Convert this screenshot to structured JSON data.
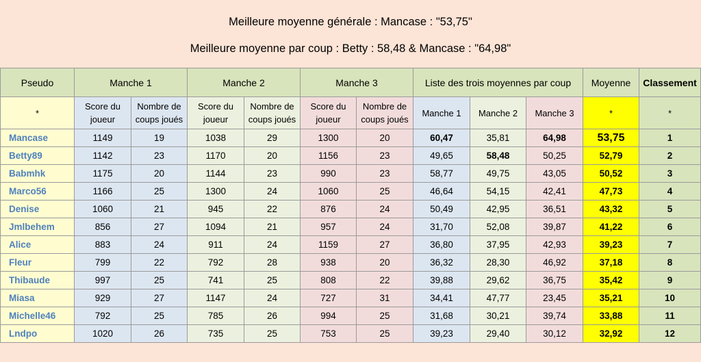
{
  "headline1": "Meilleure moyenne générale : Mancase : \"53,75\"",
  "headline2": "Meilleure moyenne par coup : Betty : 58,48 & Mancase : \"64,98\"",
  "header": {
    "pseudo": "Pseudo",
    "manche1": "Manche 1",
    "manche2": "Manche  2",
    "manche3": "Manche 3",
    "liste": "Liste des trois moyennes par coup",
    "moyenne": "Moyenne",
    "classement": "Classement"
  },
  "subheader": {
    "star": "*",
    "score_l1": "Score du",
    "score_l2": "joueur",
    "coups_l1": "Nombre de",
    "coups_l2": "coups joués",
    "lm1": "Manche 1",
    "lm2": "Manche 2",
    "lm3": "Manche 3"
  },
  "rows": [
    {
      "name": "Mancase",
      "s1": "1149",
      "c1": "19",
      "s2": "1038",
      "c2": "29",
      "s3": "1300",
      "c3": "20",
      "a1": "60,47",
      "a2": "35,81",
      "a3": "64,98",
      "avg": "53,75",
      "rank": "1"
    },
    {
      "name": "Betty89",
      "s1": "1142",
      "c1": "23",
      "s2": "1170",
      "c2": "20",
      "s3": "1156",
      "c3": "23",
      "a1": "49,65",
      "a2": "58,48",
      "a3": "50,25",
      "avg": "52,79",
      "rank": "2"
    },
    {
      "name": "Babmhk",
      "s1": "1175",
      "c1": "20",
      "s2": "1144",
      "c2": "23",
      "s3": "990",
      "c3": "23",
      "a1": "58,77",
      "a2": "49,75",
      "a3": "43,05",
      "avg": "50,52",
      "rank": "3"
    },
    {
      "name": "Marco56",
      "s1": "1166",
      "c1": "25",
      "s2": "1300",
      "c2": "24",
      "s3": "1060",
      "c3": "25",
      "a1": "46,64",
      "a2": "54,15",
      "a3": "42,41",
      "avg": "47,73",
      "rank": "4"
    },
    {
      "name": "Denise",
      "s1": "1060",
      "c1": "21",
      "s2": "945",
      "c2": "22",
      "s3": "876",
      "c3": "24",
      "a1": "50,49",
      "a2": "42,95",
      "a3": "36,51",
      "avg": "43,32",
      "rank": "5"
    },
    {
      "name": "Jmlbehem",
      "s1": "856",
      "c1": "27",
      "s2": "1094",
      "c2": "21",
      "s3": "957",
      "c3": "24",
      "a1": "31,70",
      "a2": "52,08",
      "a3": "39,87",
      "avg": "41,22",
      "rank": "6"
    },
    {
      "name": "Alice",
      "s1": "883",
      "c1": "24",
      "s2": "911",
      "c2": "24",
      "s3": "1159",
      "c3": "27",
      "a1": "36,80",
      "a2": "37,95",
      "a3": "42,93",
      "avg": "39,23",
      "rank": "7"
    },
    {
      "name": "Fleur",
      "s1": "799",
      "c1": "22",
      "s2": "792",
      "c2": "28",
      "s3": "938",
      "c3": "20",
      "a1": "36,32",
      "a2": "28,30",
      "a3": "46,92",
      "avg": "37,18",
      "rank": "8"
    },
    {
      "name": "Thibaude",
      "s1": "997",
      "c1": "25",
      "s2": "741",
      "c2": "25",
      "s3": "808",
      "c3": "22",
      "a1": "39,88",
      "a2": "29,62",
      "a3": "36,75",
      "avg": "35,42",
      "rank": "9"
    },
    {
      "name": "Miasa",
      "s1": "929",
      "c1": "27",
      "s2": "1147",
      "c2": "24",
      "s3": "727",
      "c3": "31",
      "a1": "34,41",
      "a2": "47,77",
      "a3": "23,45",
      "avg": "35,21",
      "rank": "10"
    },
    {
      "name": "Michelle46",
      "s1": "792",
      "c1": "25",
      "s2": "785",
      "c2": "26",
      "s3": "994",
      "c3": "25",
      "a1": "31,68",
      "a2": "30,21",
      "a3": "39,74",
      "avg": "33,88",
      "rank": "11"
    },
    {
      "name": "Lndpo",
      "s1": "1020",
      "c1": "26",
      "s2": "735",
      "c2": "25",
      "s3": "753",
      "c3": "25",
      "a1": "39,23",
      "a2": "29,40",
      "a3": "30,12",
      "avg": "32,92",
      "rank": "12"
    }
  ]
}
